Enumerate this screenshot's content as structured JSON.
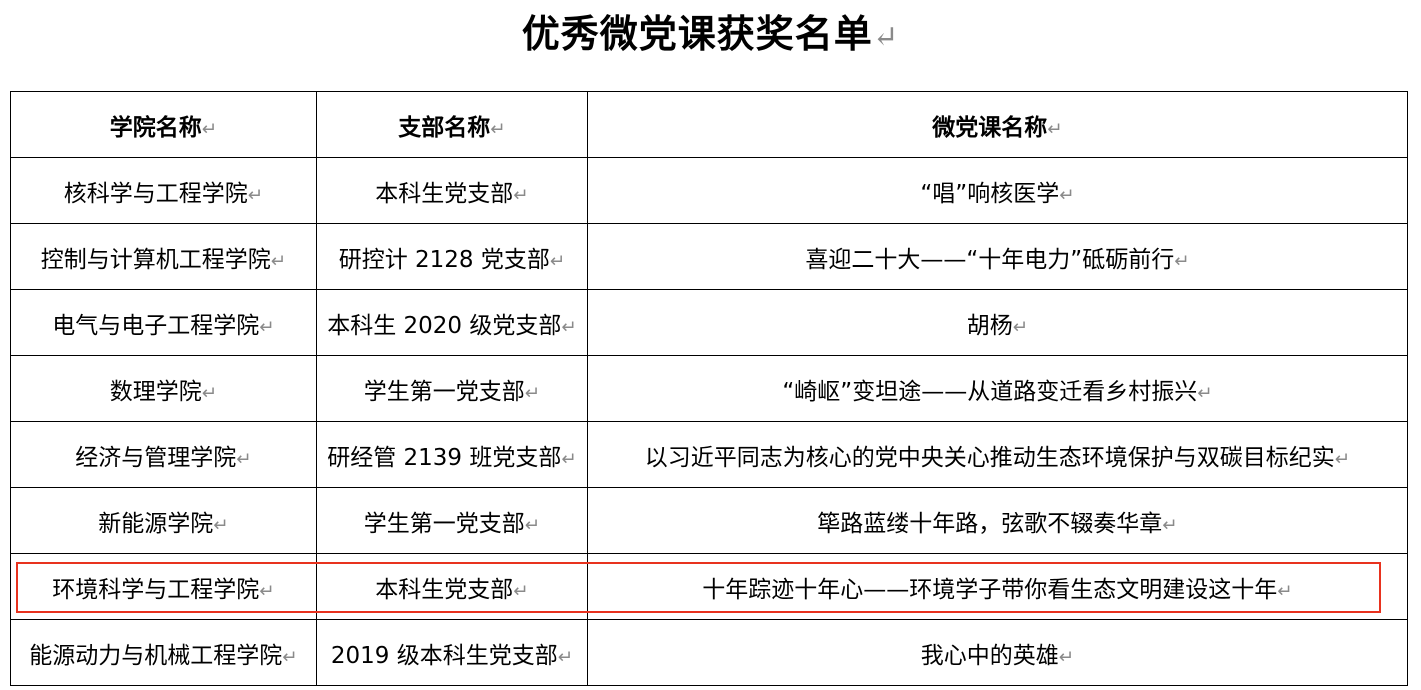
{
  "title": "优秀微党课获奖名单",
  "table": {
    "headers": [
      "学院名称",
      "支部名称",
      "微党课名称"
    ],
    "rows": [
      [
        "核科学与工程学院",
        "本科生党支部",
        "“唱”响核医学"
      ],
      [
        "控制与计算机工程学院",
        "研控计 2128 党支部",
        "喜迎二十大——“十年电力”砥砺前行"
      ],
      [
        "电气与电子工程学院",
        "本科生 2020 级党支部",
        "胡杨"
      ],
      [
        "数理学院",
        "学生第一党支部",
        "“崎岖”变坦途——从道路变迁看乡村振兴"
      ],
      [
        "经济与管理学院",
        "研经管 2139 班党支部",
        "以习近平同志为核心的党中央关心推动生态环境保护与双碳目标纪实"
      ],
      [
        "新能源学院",
        "学生第一党支部",
        "筚路蓝缕十年路，弦歌不辍奏华章"
      ],
      [
        "环境科学与工程学院",
        "本科生党支部",
        "十年踪迹十年心——环境学子带你看生态文明建设这十年"
      ],
      [
        "能源动力与机械工程学院",
        "2019 级本科生党支部",
        "我心中的英雄"
      ]
    ]
  },
  "highlight": {
    "row": 6,
    "color": "#e8321e"
  }
}
